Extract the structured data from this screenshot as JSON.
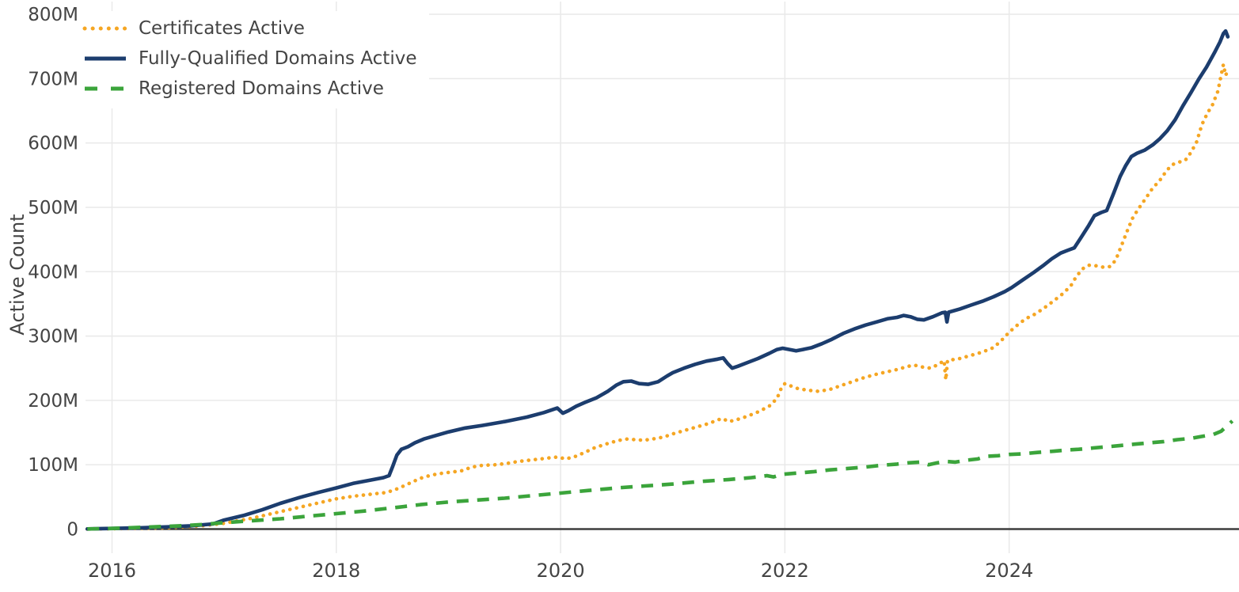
{
  "chart_data": {
    "type": "line",
    "title": "",
    "xlabel": "",
    "ylabel": "Active Count",
    "y_unit": "millions",
    "x_unit": "year",
    "xlim": [
      2015.76,
      2026.05
    ],
    "ylim": [
      0,
      800
    ],
    "grid": "on",
    "legend_position": "top-left",
    "colors": {
      "axis_text": "#444444",
      "gridline": "#e9e9e9",
      "zero_line": "#3d3d3d",
      "background": "#ffffff"
    },
    "x_ticks": [
      {
        "value": 2016,
        "label": "2016"
      },
      {
        "value": 2018,
        "label": "2018"
      },
      {
        "value": 2020,
        "label": "2020"
      },
      {
        "value": 2022,
        "label": "2022"
      },
      {
        "value": 2024,
        "label": "2024"
      }
    ],
    "y_ticks": [
      {
        "value": 0,
        "label": "0"
      },
      {
        "value": 100,
        "label": "100M"
      },
      {
        "value": 200,
        "label": "200M"
      },
      {
        "value": 300,
        "label": "300M"
      },
      {
        "value": 400,
        "label": "400M"
      },
      {
        "value": 500,
        "label": "500M"
      },
      {
        "value": 600,
        "label": "600M"
      },
      {
        "value": 700,
        "label": "700M"
      },
      {
        "value": 800,
        "label": "800M"
      }
    ],
    "series": [
      {
        "name": "Certificates Active",
        "color": "#f5a623",
        "style": "dotted",
        "points": [
          [
            2015.78,
            0.2
          ],
          [
            2016.2,
            1
          ],
          [
            2016.5,
            2
          ],
          [
            2016.8,
            5
          ],
          [
            2017.0,
            9
          ],
          [
            2017.25,
            17
          ],
          [
            2017.5,
            27
          ],
          [
            2017.75,
            37
          ],
          [
            2018.0,
            47
          ],
          [
            2018.15,
            51
          ],
          [
            2018.3,
            54
          ],
          [
            2018.45,
            57
          ],
          [
            2018.55,
            63
          ],
          [
            2018.65,
            71
          ],
          [
            2018.75,
            79
          ],
          [
            2018.85,
            84
          ],
          [
            2018.95,
            87
          ],
          [
            2019.05,
            89
          ],
          [
            2019.13,
            91
          ],
          [
            2019.2,
            96
          ],
          [
            2019.3,
            99
          ],
          [
            2019.42,
            100
          ],
          [
            2019.52,
            102
          ],
          [
            2019.62,
            105
          ],
          [
            2019.72,
            107
          ],
          [
            2019.82,
            109
          ],
          [
            2019.92,
            111
          ],
          [
            2019.98,
            112
          ],
          [
            2020.04,
            109
          ],
          [
            2020.12,
            112
          ],
          [
            2020.2,
            118
          ],
          [
            2020.3,
            126
          ],
          [
            2020.4,
            132
          ],
          [
            2020.5,
            137
          ],
          [
            2020.58,
            140
          ],
          [
            2020.66,
            139
          ],
          [
            2020.74,
            138
          ],
          [
            2020.82,
            140
          ],
          [
            2020.92,
            143
          ],
          [
            2021.0,
            148
          ],
          [
            2021.1,
            153
          ],
          [
            2021.2,
            158
          ],
          [
            2021.3,
            163
          ],
          [
            2021.38,
            168
          ],
          [
            2021.44,
            172
          ],
          [
            2021.5,
            167
          ],
          [
            2021.57,
            170
          ],
          [
            2021.66,
            175
          ],
          [
            2021.76,
            182
          ],
          [
            2021.86,
            191
          ],
          [
            2021.93,
            203
          ],
          [
            2021.97,
            220
          ],
          [
            2022.0,
            226
          ],
          [
            2022.06,
            222
          ],
          [
            2022.12,
            218
          ],
          [
            2022.2,
            216
          ],
          [
            2022.3,
            214
          ],
          [
            2022.4,
            217
          ],
          [
            2022.5,
            223
          ],
          [
            2022.6,
            229
          ],
          [
            2022.7,
            235
          ],
          [
            2022.8,
            240
          ],
          [
            2022.9,
            244
          ],
          [
            2023.0,
            248
          ],
          [
            2023.08,
            252
          ],
          [
            2023.15,
            255
          ],
          [
            2023.22,
            252
          ],
          [
            2023.3,
            250
          ],
          [
            2023.37,
            256
          ],
          [
            2023.42,
            262
          ],
          [
            2023.435,
            232
          ],
          [
            2023.45,
            262
          ],
          [
            2023.56,
            265
          ],
          [
            2023.66,
            270
          ],
          [
            2023.76,
            275
          ],
          [
            2023.86,
            282
          ],
          [
            2023.93,
            293
          ],
          [
            2024.0,
            306
          ],
          [
            2024.08,
            318
          ],
          [
            2024.15,
            327
          ],
          [
            2024.22,
            333
          ],
          [
            2024.3,
            342
          ],
          [
            2024.4,
            355
          ],
          [
            2024.48,
            366
          ],
          [
            2024.55,
            378
          ],
          [
            2024.6,
            393
          ],
          [
            2024.66,
            405
          ],
          [
            2024.71,
            410
          ],
          [
            2024.78,
            409
          ],
          [
            2024.84,
            407
          ],
          [
            2024.9,
            408
          ],
          [
            2024.95,
            418
          ],
          [
            2025.0,
            440
          ],
          [
            2025.05,
            462
          ],
          [
            2025.1,
            483
          ],
          [
            2025.15,
            497
          ],
          [
            2025.21,
            512
          ],
          [
            2025.28,
            530
          ],
          [
            2025.34,
            541
          ],
          [
            2025.4,
            556
          ],
          [
            2025.45,
            566
          ],
          [
            2025.51,
            570
          ],
          [
            2025.57,
            573
          ],
          [
            2025.62,
            585
          ],
          [
            2025.67,
            601
          ],
          [
            2025.72,
            629
          ],
          [
            2025.77,
            647
          ],
          [
            2025.81,
            658
          ],
          [
            2025.86,
            680
          ],
          [
            2025.89,
            705
          ],
          [
            2025.91,
            722
          ],
          [
            2025.93,
            705
          ],
          [
            2025.95,
            713
          ]
        ]
      },
      {
        "name": "Fully-Qualified Domains Active",
        "color": "#1c3d6e",
        "style": "solid",
        "points": [
          [
            2015.78,
            0.3
          ],
          [
            2016.0,
            1
          ],
          [
            2016.25,
            2
          ],
          [
            2016.5,
            3.5
          ],
          [
            2016.7,
            5
          ],
          [
            2016.9,
            8
          ],
          [
            2017.0,
            14
          ],
          [
            2017.17,
            21
          ],
          [
            2017.34,
            30
          ],
          [
            2017.5,
            40
          ],
          [
            2017.67,
            49
          ],
          [
            2017.84,
            57
          ],
          [
            2018.0,
            64
          ],
          [
            2018.15,
            71
          ],
          [
            2018.3,
            76
          ],
          [
            2018.42,
            80
          ],
          [
            2018.47,
            83
          ],
          [
            2018.5,
            96
          ],
          [
            2018.54,
            115
          ],
          [
            2018.58,
            124
          ],
          [
            2018.64,
            128
          ],
          [
            2018.7,
            134
          ],
          [
            2018.78,
            140
          ],
          [
            2018.88,
            145
          ],
          [
            2019.0,
            151
          ],
          [
            2019.15,
            157
          ],
          [
            2019.3,
            161
          ],
          [
            2019.5,
            167
          ],
          [
            2019.7,
            174
          ],
          [
            2019.85,
            181
          ],
          [
            2019.97,
            188
          ],
          [
            2020.02,
            180
          ],
          [
            2020.07,
            184
          ],
          [
            2020.14,
            191
          ],
          [
            2020.22,
            197
          ],
          [
            2020.32,
            204
          ],
          [
            2020.42,
            214
          ],
          [
            2020.5,
            224
          ],
          [
            2020.56,
            229
          ],
          [
            2020.63,
            230
          ],
          [
            2020.7,
            226
          ],
          [
            2020.78,
            225
          ],
          [
            2020.87,
            229
          ],
          [
            2020.95,
            238
          ],
          [
            2021.0,
            243
          ],
          [
            2021.1,
            250
          ],
          [
            2021.2,
            256
          ],
          [
            2021.3,
            261
          ],
          [
            2021.4,
            264
          ],
          [
            2021.45,
            266
          ],
          [
            2021.49,
            257
          ],
          [
            2021.53,
            250
          ],
          [
            2021.58,
            253
          ],
          [
            2021.67,
            259
          ],
          [
            2021.76,
            265
          ],
          [
            2021.86,
            273
          ],
          [
            2021.93,
            279
          ],
          [
            2021.98,
            281
          ],
          [
            2022.04,
            279
          ],
          [
            2022.1,
            277
          ],
          [
            2022.16,
            279
          ],
          [
            2022.24,
            282
          ],
          [
            2022.33,
            288
          ],
          [
            2022.42,
            295
          ],
          [
            2022.52,
            304
          ],
          [
            2022.62,
            311
          ],
          [
            2022.72,
            317
          ],
          [
            2022.82,
            322
          ],
          [
            2022.92,
            327
          ],
          [
            2023.0,
            329
          ],
          [
            2023.06,
            332
          ],
          [
            2023.12,
            330
          ],
          [
            2023.18,
            326
          ],
          [
            2023.24,
            325
          ],
          [
            2023.32,
            330
          ],
          [
            2023.4,
            336
          ],
          [
            2023.43,
            337
          ],
          [
            2023.445,
            322
          ],
          [
            2023.46,
            337
          ],
          [
            2023.56,
            342
          ],
          [
            2023.66,
            348
          ],
          [
            2023.76,
            354
          ],
          [
            2023.86,
            361
          ],
          [
            2023.96,
            369
          ],
          [
            2024.02,
            375
          ],
          [
            2024.12,
            387
          ],
          [
            2024.22,
            399
          ],
          [
            2024.3,
            409
          ],
          [
            2024.38,
            420
          ],
          [
            2024.46,
            429
          ],
          [
            2024.52,
            433
          ],
          [
            2024.58,
            437
          ],
          [
            2024.64,
            453
          ],
          [
            2024.71,
            472
          ],
          [
            2024.76,
            487
          ],
          [
            2024.82,
            492
          ],
          [
            2024.87,
            495
          ],
          [
            2024.93,
            521
          ],
          [
            2024.99,
            548
          ],
          [
            2025.04,
            565
          ],
          [
            2025.09,
            579
          ],
          [
            2025.14,
            584
          ],
          [
            2025.21,
            589
          ],
          [
            2025.28,
            597
          ],
          [
            2025.34,
            606
          ],
          [
            2025.41,
            619
          ],
          [
            2025.48,
            636
          ],
          [
            2025.55,
            658
          ],
          [
            2025.62,
            678
          ],
          [
            2025.69,
            699
          ],
          [
            2025.76,
            718
          ],
          [
            2025.83,
            740
          ],
          [
            2025.88,
            757
          ],
          [
            2025.91,
            770
          ],
          [
            2025.93,
            774
          ],
          [
            2025.95,
            765
          ]
        ]
      },
      {
        "name": "Registered Domains Active",
        "color": "#3ba43b",
        "style": "dashed",
        "points": [
          [
            2015.78,
            0.2
          ],
          [
            2016.0,
            1
          ],
          [
            2016.3,
            3
          ],
          [
            2016.6,
            5
          ],
          [
            2016.8,
            7
          ],
          [
            2017.0,
            10
          ],
          [
            2017.25,
            13
          ],
          [
            2017.5,
            16
          ],
          [
            2017.75,
            20
          ],
          [
            2018.0,
            24
          ],
          [
            2018.25,
            28
          ],
          [
            2018.5,
            33
          ],
          [
            2018.75,
            38
          ],
          [
            2019.0,
            42
          ],
          [
            2019.25,
            45
          ],
          [
            2019.5,
            48
          ],
          [
            2019.75,
            52
          ],
          [
            2020.0,
            56
          ],
          [
            2020.25,
            60
          ],
          [
            2020.5,
            64
          ],
          [
            2020.75,
            67
          ],
          [
            2021.0,
            70
          ],
          [
            2021.25,
            74
          ],
          [
            2021.5,
            77
          ],
          [
            2021.7,
            80
          ],
          [
            2021.84,
            83
          ],
          [
            2021.9,
            81
          ],
          [
            2021.97,
            85
          ],
          [
            2022.1,
            87
          ],
          [
            2022.25,
            89
          ],
          [
            2022.4,
            92
          ],
          [
            2022.55,
            94
          ],
          [
            2022.7,
            96
          ],
          [
            2022.85,
            99
          ],
          [
            2023.0,
            101
          ],
          [
            2023.1,
            103
          ],
          [
            2023.2,
            104
          ],
          [
            2023.28,
            100
          ],
          [
            2023.36,
            103
          ],
          [
            2023.44,
            105
          ],
          [
            2023.52,
            104
          ],
          [
            2023.62,
            107
          ],
          [
            2023.72,
            109
          ],
          [
            2023.79,
            113
          ],
          [
            2023.9,
            114
          ],
          [
            2024.0,
            116
          ],
          [
            2024.12,
            117
          ],
          [
            2024.25,
            119
          ],
          [
            2024.4,
            121
          ],
          [
            2024.52,
            123
          ],
          [
            2024.62,
            124
          ],
          [
            2024.75,
            126
          ],
          [
            2024.88,
            128
          ],
          [
            2025.0,
            130
          ],
          [
            2025.12,
            132
          ],
          [
            2025.25,
            134
          ],
          [
            2025.38,
            136
          ],
          [
            2025.5,
            139
          ],
          [
            2025.62,
            141
          ],
          [
            2025.72,
            144
          ],
          [
            2025.82,
            147
          ],
          [
            2025.89,
            152
          ],
          [
            2025.94,
            160
          ],
          [
            2025.99,
            168
          ]
        ]
      }
    ]
  }
}
